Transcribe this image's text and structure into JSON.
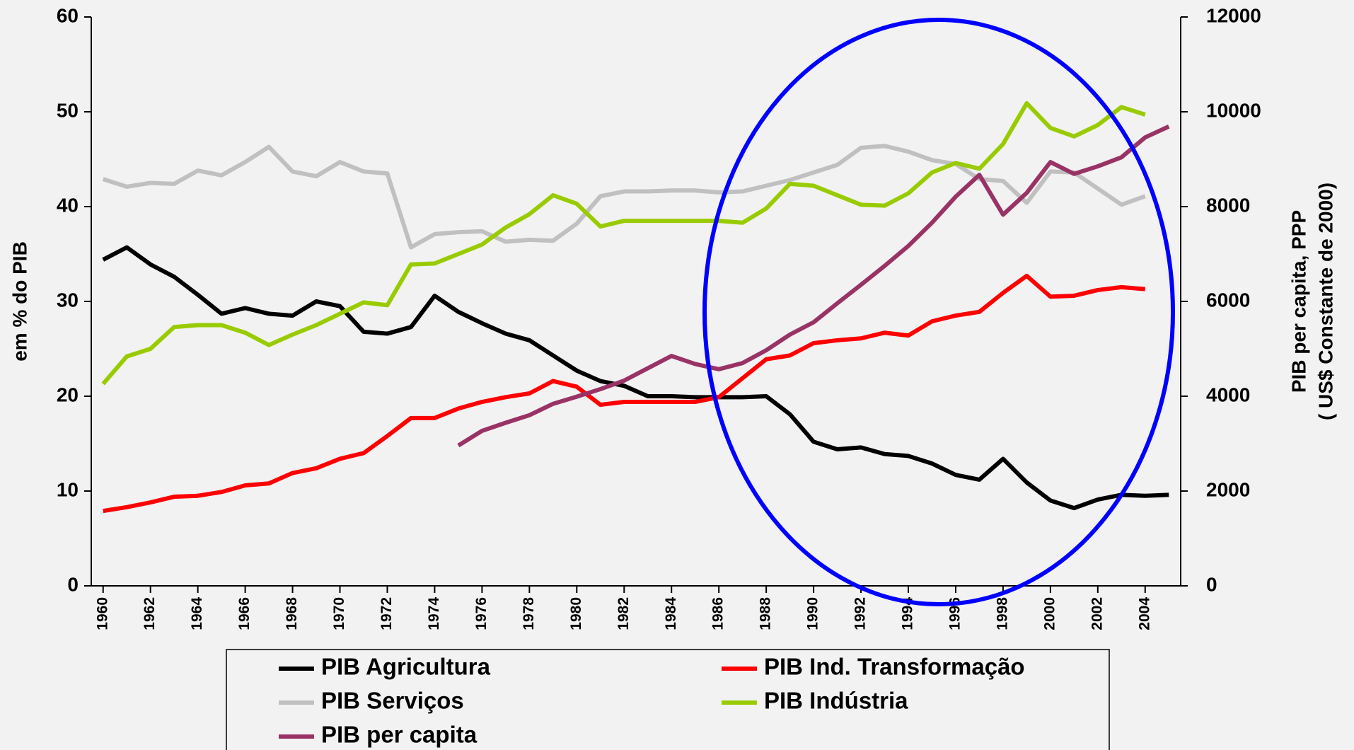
{
  "chart_data": {
    "type": "line",
    "y_label": "em % do PIB",
    "y2_label": [
      "PIB per capita, PPP",
      "( US$ Constante de 2000)"
    ],
    "x": [
      1960,
      1961,
      1962,
      1963,
      1964,
      1965,
      1966,
      1967,
      1968,
      1969,
      1970,
      1971,
      1972,
      1973,
      1974,
      1975,
      1976,
      1977,
      1978,
      1979,
      1980,
      1981,
      1982,
      1983,
      1984,
      1985,
      1986,
      1987,
      1988,
      1989,
      1990,
      1991,
      1992,
      1993,
      1994,
      1995,
      1996,
      1997,
      1998,
      1999,
      2000,
      2001,
      2002,
      2003,
      2004,
      2005
    ],
    "xlim": [
      1959.5,
      2005.5
    ],
    "xticks": [
      1960,
      1962,
      1964,
      1966,
      1968,
      1970,
      1972,
      1974,
      1976,
      1978,
      1980,
      1982,
      1984,
      1986,
      1988,
      1990,
      1992,
      1994,
      1996,
      1998,
      2000,
      2002,
      2004
    ],
    "ylim": [
      0,
      60
    ],
    "yticks": [
      0,
      10,
      20,
      30,
      40,
      50,
      60
    ],
    "y2lim": [
      0,
      12000
    ],
    "y2ticks": [
      0,
      2000,
      4000,
      6000,
      8000,
      10000,
      12000
    ],
    "grid": false,
    "series": [
      {
        "name": "PIB Agricultura",
        "color": "#000000",
        "values": [
          34.4,
          35.7,
          33.9,
          32.6,
          30.7,
          28.7,
          29.3,
          28.7,
          28.5,
          30.0,
          29.5,
          26.8,
          26.6,
          27.3,
          30.6,
          28.9,
          27.7,
          26.6,
          25.9,
          24.3,
          22.7,
          21.6,
          21.1,
          20.0,
          20.0,
          19.9,
          19.9,
          19.9,
          20.0,
          18.1,
          15.2,
          14.4,
          14.6,
          13.9,
          13.7,
          12.9,
          11.7,
          11.2,
          13.4,
          10.9,
          9.0,
          8.2,
          9.1,
          9.6,
          9.5,
          9.6
        ]
      },
      {
        "name": "PIB Ind. Transformação",
        "color": "#ff0000",
        "values": [
          7.9,
          8.3,
          8.8,
          9.4,
          9.5,
          9.9,
          10.6,
          10.8,
          11.9,
          12.4,
          13.4,
          14.0,
          15.8,
          17.7,
          17.7,
          18.7,
          19.4,
          19.9,
          20.3,
          21.6,
          21.0,
          19.1,
          19.4,
          19.4,
          19.4,
          19.4,
          19.9,
          21.9,
          23.9,
          24.3,
          25.6,
          25.9,
          26.1,
          26.7,
          26.4,
          27.9,
          28.5,
          28.9,
          30.9,
          32.7,
          30.5,
          30.6,
          31.2,
          31.5,
          31.3,
          null
        ]
      },
      {
        "name": "PIB Serviços",
        "color": "#c0c0c0",
        "values": [
          42.9,
          42.1,
          42.5,
          42.4,
          43.8,
          43.3,
          44.7,
          46.3,
          43.7,
          43.2,
          44.7,
          43.7,
          43.5,
          35.7,
          37.1,
          37.3,
          37.4,
          36.3,
          36.5,
          36.4,
          38.2,
          41.1,
          41.6,
          41.6,
          41.7,
          41.7,
          41.5,
          41.6,
          42.2,
          42.8,
          43.6,
          44.4,
          46.2,
          46.4,
          45.8,
          44.9,
          44.5,
          42.9,
          42.7,
          40.4,
          43.7,
          43.6,
          41.9,
          40.2,
          41.1,
          null
        ]
      },
      {
        "name": "PIB Indústria",
        "color": "#99cc00",
        "values": [
          21.3,
          24.2,
          25.0,
          27.3,
          27.5,
          27.5,
          26.7,
          25.4,
          26.5,
          27.5,
          28.7,
          29.9,
          29.6,
          33.9,
          34.0,
          35.0,
          36.0,
          37.8,
          39.2,
          41.2,
          40.3,
          37.9,
          38.5,
          38.5,
          38.5,
          38.5,
          38.5,
          38.3,
          39.8,
          42.4,
          42.2,
          41.2,
          40.2,
          40.1,
          41.4,
          43.6,
          44.6,
          44.0,
          46.6,
          50.9,
          48.3,
          47.4,
          48.6,
          50.5,
          49.7,
          null
        ]
      },
      {
        "name": "PIB per capita",
        "color": "#993366",
        "axis": "y2",
        "values": [
          null,
          null,
          null,
          null,
          null,
          null,
          null,
          null,
          null,
          null,
          null,
          null,
          null,
          null,
          null,
          2960,
          3270,
          3440,
          3600,
          3840,
          3990,
          4150,
          4330,
          4590,
          4850,
          4680,
          4570,
          4700,
          4970,
          5300,
          5560,
          5960,
          6350,
          6750,
          7170,
          7660,
          8210,
          8670,
          7830,
          8290,
          8940,
          8690,
          8850,
          9040,
          9460,
          9690
        ]
      }
    ]
  }
}
